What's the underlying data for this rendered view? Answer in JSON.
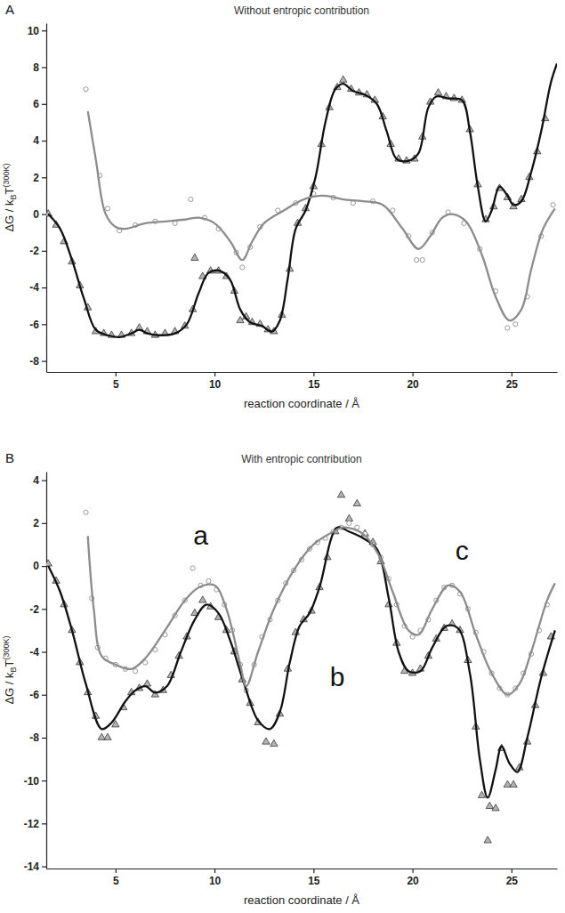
{
  "chart_data": [
    {
      "type": "line",
      "panel": "A",
      "title": "Without entropic contribution",
      "xlabel": "reaction coordinate / Å",
      "ylabel": [
        "ΔG / k",
        "B",
        "T",
        "(300K)"
      ],
      "xlim": [
        1.5,
        27.3
      ],
      "xticks": [
        5,
        10,
        15,
        20,
        25
      ],
      "ylim": [
        -8.6,
        10.4
      ],
      "yticks": [
        -8,
        -6,
        -4,
        -2,
        0,
        2,
        4,
        6,
        8,
        10
      ],
      "grid": false,
      "series": [
        {
          "type": "scatter",
          "color": "#222222",
          "marker": "triangle",
          "x": [
            1.6,
            2.0,
            2.4,
            2.8,
            3.2,
            3.6,
            4.0,
            4.4,
            4.8,
            5.3,
            5.8,
            6.2,
            6.6,
            7.0,
            7.5,
            8.0,
            8.5,
            8.9,
            9.0,
            9.4,
            9.8,
            10.2,
            10.6,
            11.0,
            11.3,
            11.6,
            11.9,
            12.3,
            12.7,
            13.0,
            13.4,
            13.8,
            14.2,
            14.6,
            15.0,
            15.4,
            15.8,
            16.2,
            16.5,
            16.9,
            17.3,
            17.7,
            18.1,
            18.5,
            18.9,
            19.3,
            19.7,
            20.1,
            20.5,
            20.9,
            21.3,
            21.7,
            22.1,
            22.5,
            22.9,
            23.3,
            23.7,
            24.1,
            24.4,
            24.8,
            25.1,
            25.5,
            25.9,
            26.3,
            26.7
          ],
          "values": [
            0,
            -0.6,
            -1.5,
            -2.6,
            -3.9,
            -5.1,
            -6.4,
            -6.5,
            -6.6,
            -6.6,
            -6.5,
            -6.2,
            -6.4,
            -6.6,
            -6.5,
            -6.4,
            -6.1,
            -5.2,
            -2.4,
            -3.4,
            -3.1,
            -3.1,
            -3.4,
            -4.2,
            -5.8,
            -5.6,
            -5.9,
            -6.0,
            -6.3,
            -6.4,
            -5.5,
            -3.0,
            -0.5,
            0.3,
            1.5,
            3.8,
            5.8,
            6.9,
            7.3,
            6.8,
            6.6,
            6.5,
            6.2,
            5.3,
            3.8,
            3.0,
            2.9,
            3.0,
            4.2,
            6.1,
            6.6,
            6.4,
            6.3,
            6.2,
            4.6,
            1.6,
            -0.3,
            0.4,
            1.4,
            0.9,
            0.4,
            0.8,
            2.0,
            3.4,
            5.2
          ]
        },
        {
          "type": "scatter",
          "color": "#808080",
          "marker": "circle",
          "x": [
            3.5,
            4.2,
            4.6,
            5.2,
            6.0,
            7.0,
            8.0,
            8.8,
            9.5,
            10.2,
            11.1,
            11.4,
            11.8,
            12.3,
            13.2,
            14.1,
            15.0,
            16.0,
            17.0,
            18.0,
            19.0,
            19.8,
            20.2,
            20.5,
            21.0,
            21.8,
            22.6,
            23.4,
            24.2,
            24.8,
            25.2,
            25.8,
            26.5,
            27.1
          ],
          "values": [
            6.8,
            2.1,
            0.3,
            -0.9,
            -0.6,
            -0.4,
            -0.5,
            0.8,
            -0.2,
            -0.8,
            -2.1,
            -2.9,
            -1.8,
            -0.7,
            0.2,
            0.6,
            1.1,
            0.9,
            0.6,
            0.7,
            0.2,
            -1.2,
            -2.5,
            -2.5,
            -1.0,
            0.1,
            -0.5,
            -1.9,
            -4.2,
            -6.2,
            -6.0,
            -4.5,
            -1.2,
            0.5
          ]
        },
        {
          "type": "line",
          "color": "#111111",
          "line_style": "solid",
          "x": [
            1.6,
            2.2,
            2.8,
            3.4,
            4.0,
            4.6,
            5.2,
            5.8,
            6.2,
            6.6,
            7.2,
            8.0,
            8.6,
            9.2,
            9.7,
            10.3,
            10.8,
            11.3,
            11.8,
            12.4,
            12.9,
            13.3,
            13.7,
            14.1,
            14.6,
            15.1,
            15.6,
            16.1,
            16.5,
            17.0,
            17.6,
            18.2,
            18.7,
            19.2,
            19.8,
            20.3,
            20.8,
            21.2,
            21.8,
            22.5,
            22.9,
            23.3,
            23.7,
            24.0,
            24.4,
            24.8,
            25.1,
            25.5,
            26.0,
            26.5,
            27.0,
            27.3
          ],
          "values": [
            0,
            -0.8,
            -2.5,
            -4.6,
            -6.3,
            -6.6,
            -6.7,
            -6.5,
            -6.3,
            -6.5,
            -6.6,
            -6.5,
            -6.0,
            -4.3,
            -3.2,
            -3.1,
            -3.6,
            -5.2,
            -5.9,
            -6.1,
            -6.4,
            -5.8,
            -3.5,
            -0.8,
            0.2,
            2.0,
            5.0,
            6.8,
            7.1,
            6.7,
            6.5,
            6.0,
            4.5,
            3.0,
            2.9,
            3.3,
            5.8,
            6.4,
            6.3,
            6.2,
            4.5,
            1.5,
            -0.4,
            0.2,
            1.5,
            1.0,
            0.5,
            0.7,
            2.3,
            4.5,
            7.2,
            8.2
          ]
        },
        {
          "type": "line",
          "color": "#8c8c8c",
          "line_style": "solid",
          "x": [
            3.6,
            4.0,
            4.5,
            5.0,
            5.5,
            6.5,
            7.5,
            8.5,
            9.2,
            10.0,
            10.8,
            11.4,
            11.9,
            12.5,
            13.5,
            14.5,
            15.5,
            16.5,
            17.5,
            18.5,
            19.5,
            20.3,
            20.9,
            21.5,
            22.0,
            22.7,
            23.5,
            24.2,
            24.9,
            25.5,
            26.0,
            26.6,
            27.2
          ],
          "values": [
            5.6,
            3.0,
            0.0,
            -0.7,
            -0.8,
            -0.5,
            -0.4,
            -0.3,
            -0.2,
            -0.5,
            -1.5,
            -2.5,
            -1.5,
            -0.5,
            0.2,
            0.8,
            1.0,
            0.8,
            0.7,
            0.5,
            -0.8,
            -1.9,
            -1.2,
            -0.2,
            0.0,
            -0.4,
            -2.2,
            -4.5,
            -5.8,
            -5.2,
            -3.0,
            -0.8,
            0.3
          ]
        }
      ]
    },
    {
      "type": "line",
      "panel": "B",
      "title": "With entropic contribution",
      "xlabel": "reaction coordinate / Å",
      "ylabel": [
        "ΔG / k",
        "B",
        "T",
        "(300K)"
      ],
      "xlim": [
        1.5,
        27.3
      ],
      "xticks": [
        5,
        10,
        15,
        20,
        25
      ],
      "ylim": [
        -14.1,
        4.4
      ],
      "yticks": [
        -14,
        -12,
        -10,
        -8,
        -6,
        -4,
        -2,
        0,
        2,
        4
      ],
      "grid": false,
      "annotations": [
        {
          "text": "a",
          "x": 9.3,
          "y": 1.0
        },
        {
          "text": "b",
          "x": 16.2,
          "y": -5.6
        },
        {
          "text": "c",
          "x": 22.5,
          "y": 0.3
        }
      ],
      "series": [
        {
          "type": "scatter",
          "color": "#222222",
          "marker": "triangle",
          "x": [
            1.6,
            2.0,
            2.4,
            2.8,
            3.2,
            3.6,
            4.0,
            4.3,
            4.6,
            5.0,
            5.4,
            5.8,
            6.2,
            6.6,
            7.0,
            7.4,
            7.8,
            8.2,
            8.6,
            9.0,
            9.4,
            9.8,
            10.2,
            10.6,
            11.0,
            11.4,
            11.8,
            12.2,
            12.6,
            13.0,
            13.3,
            13.7,
            14.1,
            14.5,
            14.9,
            15.3,
            15.7,
            16.1,
            16.4,
            16.8,
            17.2,
            17.6,
            18.0,
            18.4,
            18.8,
            19.2,
            19.6,
            20.0,
            20.4,
            20.8,
            21.2,
            21.6,
            22.0,
            22.4,
            22.8,
            23.2,
            23.5,
            23.8,
            23.9,
            24.2,
            24.5,
            24.8,
            25.1,
            25.4,
            25.8,
            26.2,
            26.6,
            27.0
          ],
          "values": [
            0.1,
            -0.7,
            -1.8,
            -3.0,
            -4.5,
            -5.9,
            -7.0,
            -8.0,
            -8.0,
            -7.4,
            -6.6,
            -5.9,
            -5.7,
            -5.5,
            -6.0,
            -5.8,
            -5.1,
            -4.2,
            -3.3,
            -2.2,
            -1.6,
            -1.9,
            -2.4,
            -3.0,
            -4.0,
            -5.3,
            -6.4,
            -7.3,
            -8.2,
            -8.3,
            -6.9,
            -4.8,
            -3.1,
            -2.5,
            -2.1,
            -1.0,
            0.4,
            1.6,
            3.3,
            2.2,
            2.9,
            1.5,
            1.1,
            0.2,
            -1.8,
            -3.6,
            -4.9,
            -5.0,
            -4.8,
            -4.2,
            -3.4,
            -2.9,
            -2.7,
            -3.0,
            -4.4,
            -7.5,
            -10.7,
            -12.8,
            -11.2,
            -11.3,
            -8.5,
            -10.2,
            -10.2,
            -9.4,
            -8.2,
            -6.5,
            -5.0,
            -3.3
          ]
        },
        {
          "type": "scatter",
          "color": "#808080",
          "marker": "circle",
          "x": [
            3.5,
            3.8,
            4.1,
            4.5,
            5.0,
            5.5,
            6.0,
            6.5,
            7.0,
            7.5,
            8.0,
            8.5,
            8.9,
            9.3,
            9.7,
            10.1,
            10.5,
            10.9,
            11.3,
            11.6,
            12.0,
            12.4,
            12.8,
            13.2,
            13.6,
            14.0,
            14.4,
            14.8,
            15.2,
            15.6,
            16.0,
            16.4,
            16.8,
            17.2,
            17.6,
            18.0,
            18.4,
            18.8,
            19.2,
            19.6,
            20.0,
            20.4,
            20.8,
            21.2,
            21.6,
            22.0,
            22.4,
            22.8,
            23.2,
            23.6,
            24.0,
            24.4,
            24.8,
            25.2,
            25.6,
            26.0,
            26.4,
            26.8
          ],
          "values": [
            2.5,
            -1.5,
            -3.8,
            -4.3,
            -4.6,
            -4.8,
            -4.9,
            -4.5,
            -3.9,
            -3.2,
            -2.3,
            -1.6,
            -0.1,
            -0.9,
            -0.7,
            -1.1,
            -1.8,
            -3.0,
            -4.6,
            -5.8,
            -4.6,
            -3.3,
            -2.5,
            -1.6,
            -0.8,
            -0.2,
            0.3,
            0.8,
            1.1,
            1.3,
            1.6,
            1.8,
            2.0,
            1.8,
            1.5,
            1.0,
            0.4,
            -0.6,
            -1.8,
            -2.8,
            -3.3,
            -3.0,
            -2.5,
            -1.6,
            -1.0,
            -0.9,
            -1.3,
            -2.0,
            -3.1,
            -4.0,
            -5.0,
            -5.7,
            -6.0,
            -5.7,
            -5.0,
            -4.1,
            -3.0,
            -1.8
          ]
        },
        {
          "type": "line",
          "color": "#111111",
          "line_style": "solid",
          "x": [
            1.6,
            2.2,
            2.8,
            3.5,
            4.3,
            4.8,
            5.5,
            6.0,
            6.5,
            7.0,
            7.6,
            8.3,
            9.0,
            9.6,
            10.2,
            10.8,
            11.5,
            12.2,
            12.8,
            13.3,
            13.8,
            14.3,
            14.8,
            15.3,
            16.2,
            16.8,
            17.5,
            18.2,
            18.8,
            19.3,
            19.8,
            20.4,
            21.0,
            21.7,
            22.3,
            22.9,
            23.4,
            23.8,
            24.2,
            24.5,
            24.9,
            25.3,
            25.8,
            26.5,
            27.2
          ],
          "values": [
            0,
            -1.2,
            -3.0,
            -5.5,
            -7.6,
            -7.3,
            -6.3,
            -5.8,
            -5.6,
            -5.9,
            -5.6,
            -4.0,
            -2.5,
            -1.8,
            -2.2,
            -3.5,
            -5.5,
            -7.2,
            -7.6,
            -6.8,
            -4.5,
            -2.8,
            -2.2,
            -1.0,
            1.8,
            1.6,
            1.3,
            0.8,
            -1.5,
            -4.0,
            -4.9,
            -4.9,
            -3.8,
            -2.8,
            -2.9,
            -5.0,
            -9.0,
            -10.8,
            -9.5,
            -8.4,
            -9.2,
            -9.6,
            -8.0,
            -5.2,
            -3.0
          ]
        },
        {
          "type": "line",
          "color": "#8c8c8c",
          "line_style": "solid",
          "x": [
            3.6,
            3.9,
            4.3,
            5.0,
            5.8,
            6.5,
            7.5,
            8.5,
            9.2,
            10.0,
            10.6,
            11.3,
            11.6,
            12.2,
            13.0,
            14.0,
            15.0,
            16.0,
            16.5,
            17.5,
            18.3,
            19.0,
            19.8,
            20.3,
            21.0,
            21.8,
            22.4,
            23.2,
            24.0,
            24.8,
            25.4,
            26.0,
            26.8,
            27.2
          ],
          "values": [
            1.4,
            -2.0,
            -4.2,
            -4.6,
            -4.8,
            -4.3,
            -3.0,
            -1.6,
            -1.0,
            -0.9,
            -2.0,
            -4.6,
            -5.6,
            -4.0,
            -2.0,
            -0.2,
            1.0,
            1.6,
            1.8,
            1.5,
            0.5,
            -1.2,
            -3.0,
            -3.2,
            -2.0,
            -0.9,
            -1.2,
            -3.2,
            -5.0,
            -6.0,
            -5.5,
            -4.0,
            -1.6,
            -0.8
          ]
        }
      ]
    }
  ]
}
